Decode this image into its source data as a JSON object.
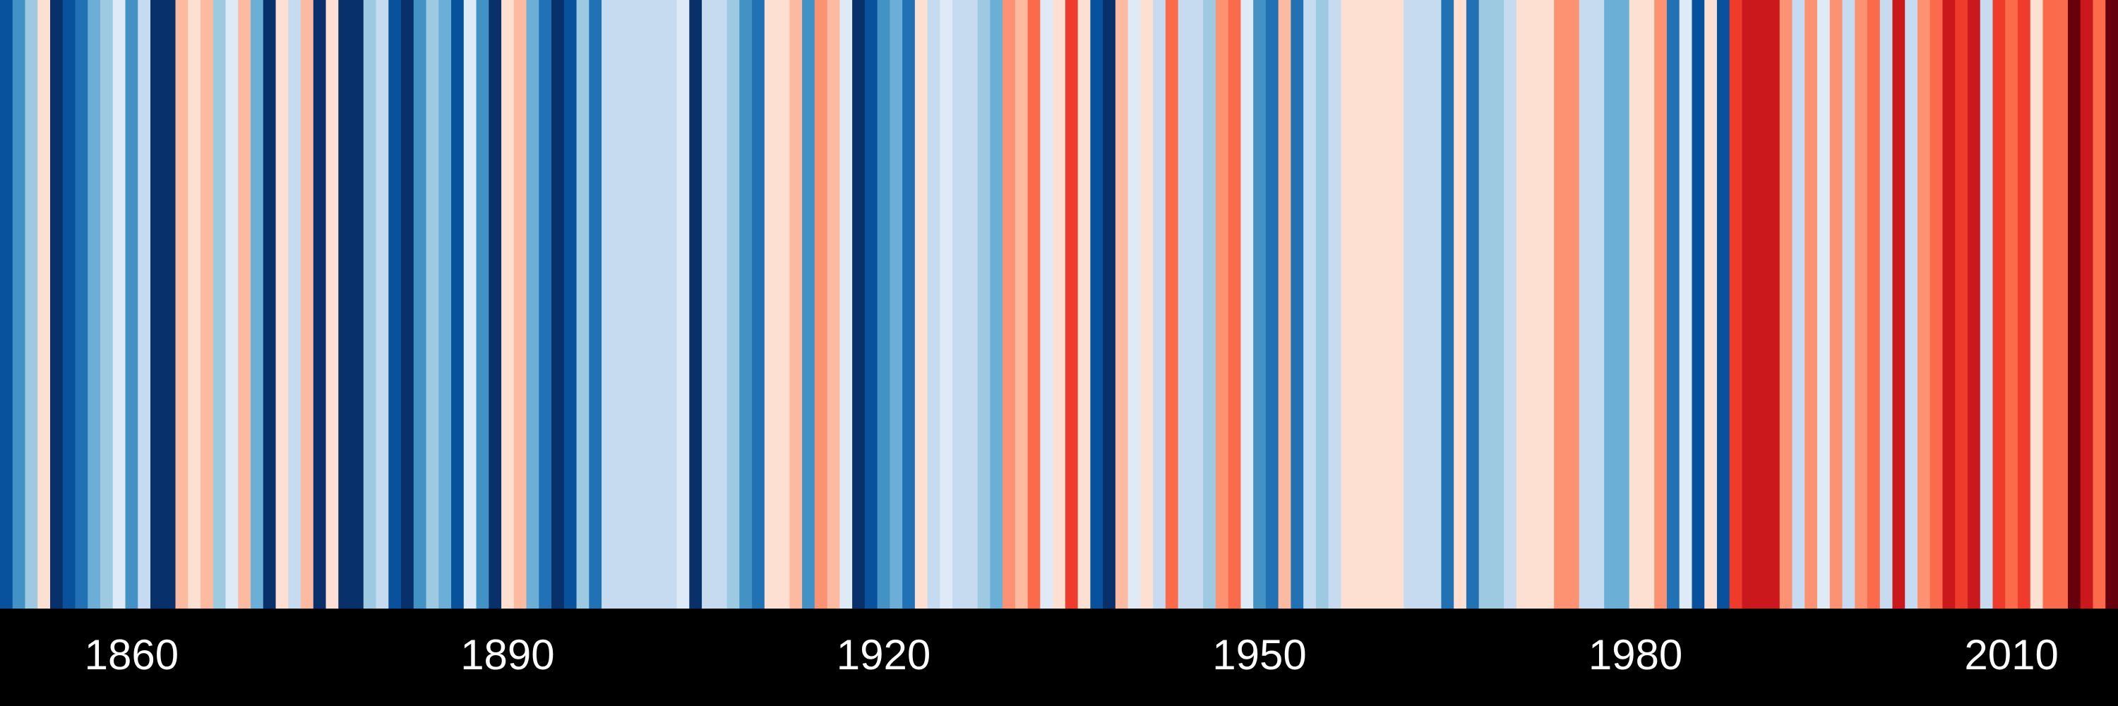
{
  "chart_data": {
    "type": "heatmap",
    "title": "",
    "xlabel": "",
    "ylabel": "",
    "grid": false,
    "legend": "none",
    "x_start": 1850,
    "x_end": 2018,
    "x_ticks": [
      1860,
      1890,
      1920,
      1950,
      1980,
      2010
    ],
    "x_tick_labels": [
      "1860",
      "1890",
      "1920",
      "1950",
      "1980",
      "2010"
    ],
    "palette": [
      "#08306b",
      "#08519c",
      "#2171b5",
      "#4292c6",
      "#6baed6",
      "#9ecae1",
      "#c6dbef",
      "#deebf7",
      "#fee0d2",
      "#fcbba1",
      "#fc9272",
      "#fb6a4a",
      "#ef3b2c",
      "#cb181d",
      "#a50f15",
      "#67000d"
    ],
    "years": [
      1850,
      1851,
      1852,
      1853,
      1854,
      1855,
      1856,
      1857,
      1858,
      1859,
      1860,
      1861,
      1862,
      1863,
      1864,
      1865,
      1866,
      1867,
      1868,
      1869,
      1870,
      1871,
      1872,
      1873,
      1874,
      1875,
      1876,
      1877,
      1878,
      1879,
      1880,
      1881,
      1882,
      1883,
      1884,
      1885,
      1886,
      1887,
      1888,
      1889,
      1890,
      1891,
      1892,
      1893,
      1894,
      1895,
      1896,
      1897,
      1898,
      1899,
      1900,
      1901,
      1902,
      1903,
      1904,
      1905,
      1906,
      1907,
      1908,
      1909,
      1910,
      1911,
      1912,
      1913,
      1914,
      1915,
      1916,
      1917,
      1918,
      1919,
      1920,
      1921,
      1922,
      1923,
      1924,
      1925,
      1926,
      1927,
      1928,
      1929,
      1930,
      1931,
      1932,
      1933,
      1934,
      1935,
      1936,
      1937,
      1938,
      1939,
      1940,
      1941,
      1942,
      1943,
      1944,
      1945,
      1946,
      1947,
      1948,
      1949,
      1950,
      1951,
      1952,
      1953,
      1954,
      1955,
      1956,
      1957,
      1958,
      1959,
      1960,
      1961,
      1962,
      1963,
      1964,
      1965,
      1966,
      1967,
      1968,
      1969,
      1970,
      1971,
      1972,
      1973,
      1974,
      1975,
      1976,
      1977,
      1978,
      1979,
      1980,
      1981,
      1982,
      1983,
      1984,
      1985,
      1986,
      1987,
      1988,
      1989,
      1990,
      1991,
      1992,
      1993,
      1994,
      1995,
      1996,
      1997,
      1998,
      1999,
      2000,
      2001,
      2002,
      2003,
      2004,
      2005,
      2006,
      2007,
      2008,
      2009,
      2010,
      2011,
      2012,
      2013,
      2014,
      2015,
      2016,
      2017,
      2018
    ],
    "level_index": [
      1,
      3,
      5,
      8,
      0,
      1,
      2,
      4,
      5,
      7,
      3,
      6,
      0,
      0,
      9,
      8,
      9,
      5,
      7,
      9,
      4,
      0,
      8,
      6,
      9,
      0,
      8,
      0,
      0,
      5,
      6,
      1,
      0,
      3,
      5,
      4,
      1,
      7,
      3,
      0,
      8,
      9,
      4,
      2,
      0,
      1,
      5,
      2,
      6,
      6,
      6,
      6,
      6,
      6,
      7,
      0,
      6,
      6,
      5,
      3,
      2,
      8,
      8,
      9,
      3,
      10,
      9,
      7,
      0,
      1,
      3,
      4,
      2,
      8,
      6,
      7,
      6,
      6,
      5,
      4,
      10,
      9,
      11,
      7,
      8,
      12,
      8,
      1,
      0,
      9,
      7,
      8,
      6,
      11,
      6,
      6,
      5,
      10,
      11,
      7,
      3,
      2,
      9,
      2,
      6,
      5,
      6,
      8,
      8,
      8,
      8,
      8,
      6,
      6,
      6,
      2,
      8,
      2,
      5,
      5,
      6,
      8,
      8,
      8,
      10,
      10,
      6,
      6,
      4,
      4,
      8,
      8,
      10,
      2,
      7,
      1,
      8,
      1,
      12,
      13,
      13,
      13,
      10,
      6,
      10,
      7,
      10,
      6,
      10,
      11,
      6,
      13,
      6,
      10,
      11,
      13,
      12,
      13,
      6,
      12,
      11,
      12,
      8,
      11,
      11,
      15,
      13,
      11,
      15
    ]
  }
}
